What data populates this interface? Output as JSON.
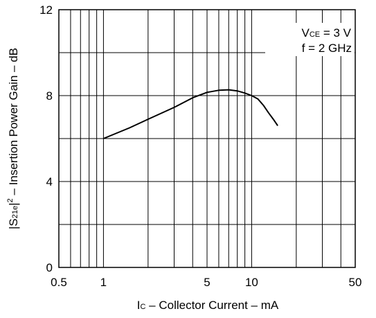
{
  "chart_data": {
    "type": "line",
    "x_scale": "log",
    "xlim": [
      0.5,
      50
    ],
    "ylim": [
      0,
      12
    ],
    "x_ticks": [
      0.5,
      1,
      5,
      10,
      50
    ],
    "x_tick_labels": [
      "0.5",
      "1",
      "5",
      "10",
      "50"
    ],
    "y_ticks": [
      0,
      4,
      8,
      12
    ],
    "y_tick_labels": [
      "0",
      "4",
      "8",
      "12"
    ],
    "x_gridlines": [
      0.6,
      0.7,
      0.8,
      0.9,
      1,
      2,
      3,
      4,
      5,
      6,
      7,
      8,
      9,
      10,
      20,
      30,
      40
    ],
    "y_gridlines": [
      2,
      4,
      6,
      8,
      10
    ],
    "grid": true,
    "xlabel": {
      "prefix": "I",
      "subscript": "C",
      "rest": " – Collector Current – mA"
    },
    "ylabel": {
      "prefix": "|S",
      "subscript": "21e",
      "mid": "|",
      "superscript": "2",
      "rest": " – Insertion Power Gain – dB"
    },
    "annotation": {
      "line1_prefix": "V",
      "line1_subscript": "CE",
      "line1_rest": " = 3 V",
      "line2": "f = 2 GHz",
      "placement": "top-right"
    },
    "series": [
      {
        "x": [
          1,
          1.5,
          2,
          3,
          4,
          5,
          6,
          7,
          8,
          9,
          10,
          11,
          12,
          13,
          14,
          15
        ],
        "y": [
          6.0,
          6.5,
          6.9,
          7.45,
          7.9,
          8.15,
          8.25,
          8.27,
          8.22,
          8.12,
          8.0,
          7.85,
          7.55,
          7.2,
          6.9,
          6.6
        ]
      }
    ]
  }
}
